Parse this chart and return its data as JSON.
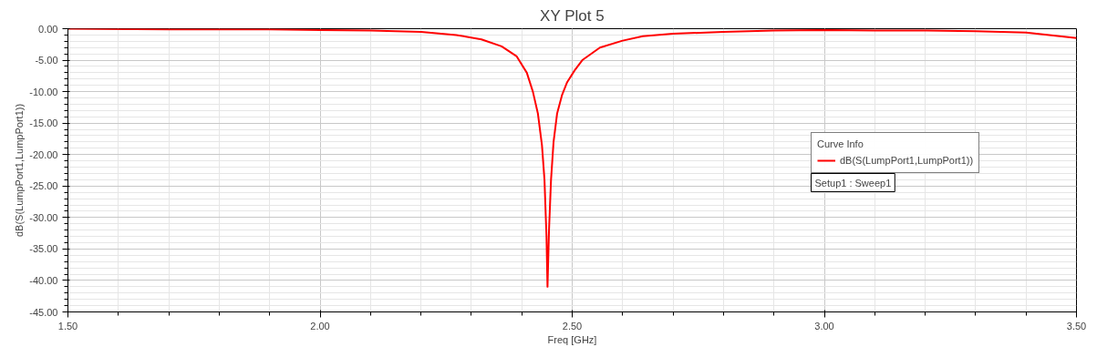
{
  "chart_data": {
    "type": "line",
    "title": "XY Plot 5",
    "xlabel": "Freq [GHz]",
    "ylabel": "dB(S(LumpPort1,LumpPort1))",
    "legend_title": "Curve Info",
    "annotations": [
      "Setup1 : Sweep1"
    ],
    "x": [
      1.5,
      1.7,
      1.9,
      2.0,
      2.1,
      2.2,
      2.27,
      2.32,
      2.36,
      2.39,
      2.41,
      2.422,
      2.432,
      2.44,
      2.445,
      2.449,
      2.451,
      2.454,
      2.458,
      2.463,
      2.47,
      2.48,
      2.49,
      2.505,
      2.52,
      2.555,
      2.6,
      2.64,
      2.7,
      2.8,
      2.9,
      3.0,
      3.1,
      3.2,
      3.3,
      3.4,
      3.5
    ],
    "series": [
      {
        "name": "dB(S(LumpPort1,LumpPort1))",
        "color": "#ff0000",
        "values": [
          0.0,
          -0.1,
          -0.1,
          -0.2,
          -0.3,
          -0.5,
          -1.0,
          -1.7,
          -2.8,
          -4.4,
          -7.0,
          -10.0,
          -13.5,
          -18.5,
          -24.0,
          -33.0,
          -41.0,
          -32.0,
          -24.0,
          -18.0,
          -13.5,
          -10.5,
          -8.5,
          -6.6,
          -5.0,
          -3.0,
          -1.9,
          -1.2,
          -0.8,
          -0.5,
          -0.3,
          -0.2,
          -0.3,
          -0.3,
          -0.4,
          -0.6,
          -1.5
        ]
      }
    ],
    "xlim": [
      1.5,
      3.5
    ],
    "ylim": [
      -45,
      0
    ],
    "xticks": [
      {
        "value": 1.5,
        "label": "1.50"
      },
      {
        "value": 2.0,
        "label": "2.00"
      },
      {
        "value": 2.5,
        "label": "2.50"
      },
      {
        "value": 3.0,
        "label": "3.00"
      },
      {
        "value": 3.5,
        "label": "3.50"
      }
    ],
    "yticks": [
      {
        "value": -45,
        "label": "-45.00"
      },
      {
        "value": -40,
        "label": "-40.00"
      },
      {
        "value": -35,
        "label": "-35.00"
      },
      {
        "value": -30,
        "label": "-30.00"
      },
      {
        "value": -25,
        "label": "-25.00"
      },
      {
        "value": -20,
        "label": "-20.00"
      },
      {
        "value": -15,
        "label": "-15.00"
      },
      {
        "value": -10,
        "label": "-10.00"
      },
      {
        "value": -5,
        "label": "-5.00"
      },
      {
        "value": 0,
        "label": "0.00"
      }
    ],
    "grid": true,
    "legend": "right",
    "marker": "none",
    "line_style": "solid"
  }
}
